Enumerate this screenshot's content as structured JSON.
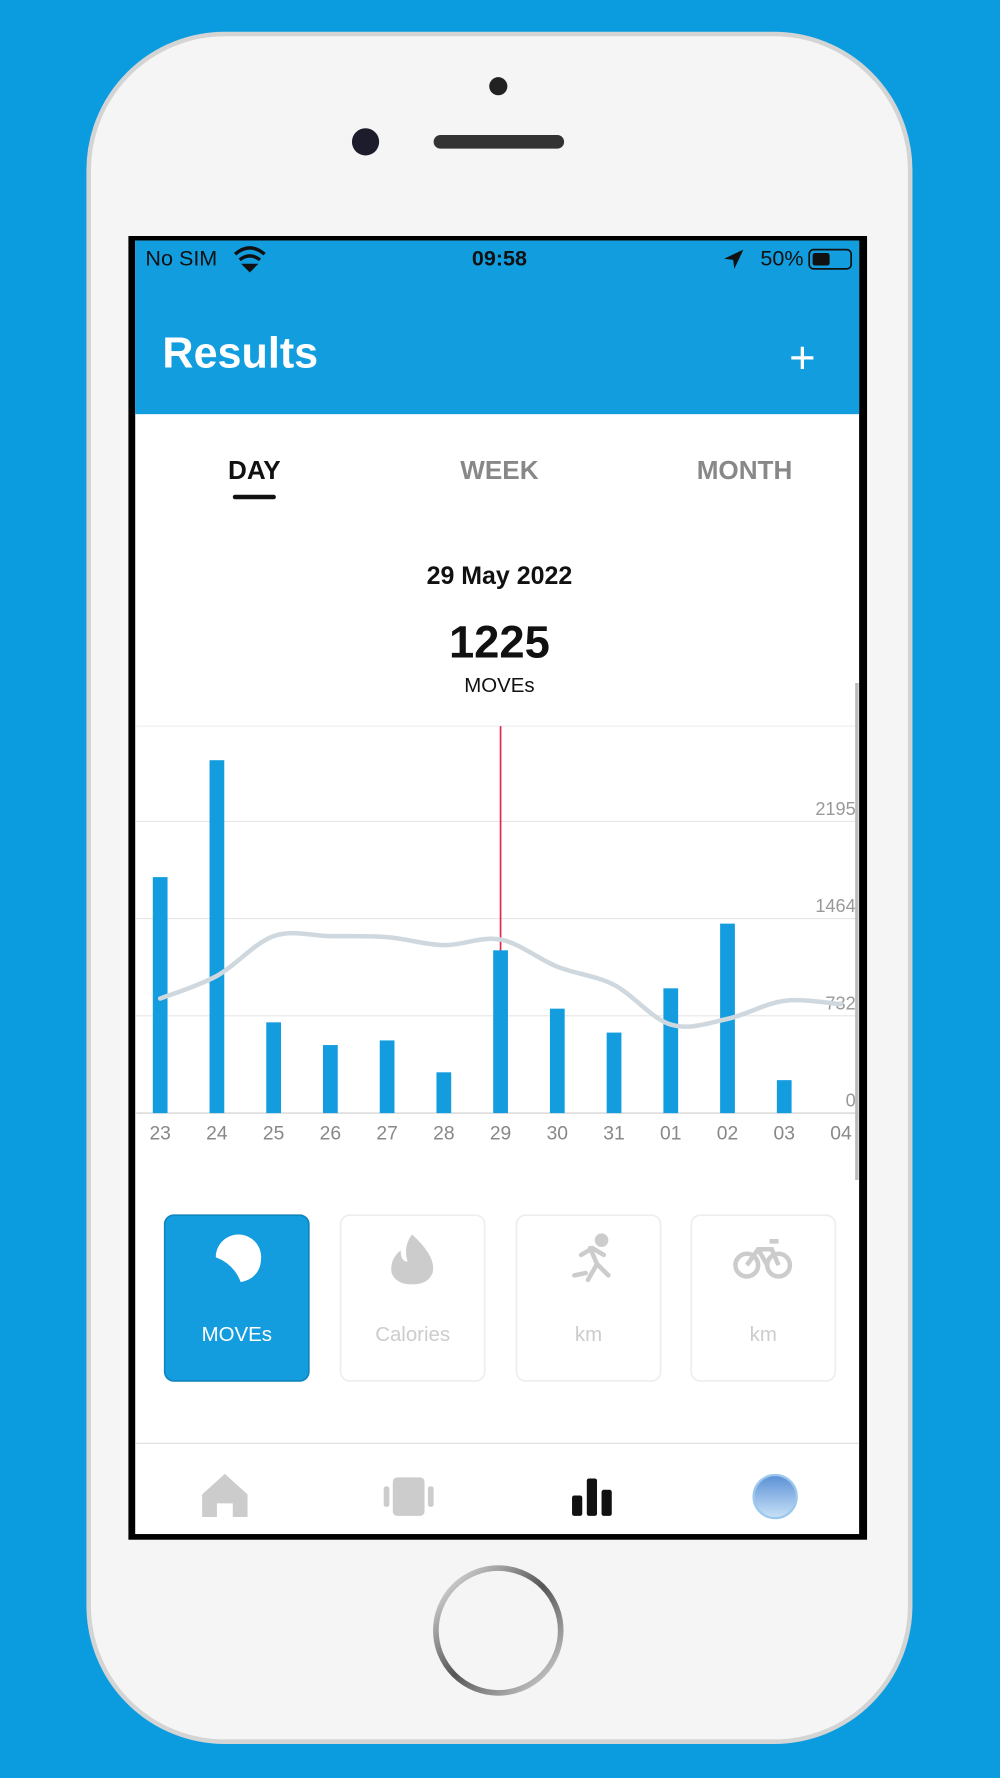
{
  "status_bar": {
    "carrier": "No SIM",
    "time": "09:58",
    "battery": "50%"
  },
  "header": {
    "title": "Results",
    "action": "+"
  },
  "tabs": {
    "items": [
      "DAY",
      "WEEK",
      "MONTH"
    ],
    "selected": 0
  },
  "summary": {
    "date": "29 May 2022",
    "value": 1225,
    "unit": "MOVEs"
  },
  "chart_data": {
    "type": "bar",
    "categories": [
      "23",
      "24",
      "25",
      "26",
      "27",
      "28",
      "29",
      "30",
      "31",
      "01",
      "02",
      "03",
      "04"
    ],
    "series": [
      {
        "type": "bar",
        "color": "#139ddf",
        "values": [
          1776,
          2656,
          683,
          512,
          547,
          307,
          1225,
          786,
          606,
          939,
          1426,
          248,
          null
        ]
      },
      {
        "type": "line",
        "color": "#cfd8de",
        "values": [
          862,
          1033,
          1332,
          1332,
          1324,
          1264,
          1306,
          1102,
          965,
          666,
          709,
          845,
          820
        ]
      }
    ],
    "ylim": [
      0,
      2912
    ],
    "yticks": [
      0,
      732,
      1464,
      2195
    ],
    "grid": true,
    "selected": 6
  },
  "tiles": [
    {
      "label": "MOVEs",
      "selected": true
    },
    {
      "label": "Calories",
      "selected": false
    },
    {
      "label": "km",
      "selected": false
    },
    {
      "label": "km",
      "selected": false
    }
  ]
}
